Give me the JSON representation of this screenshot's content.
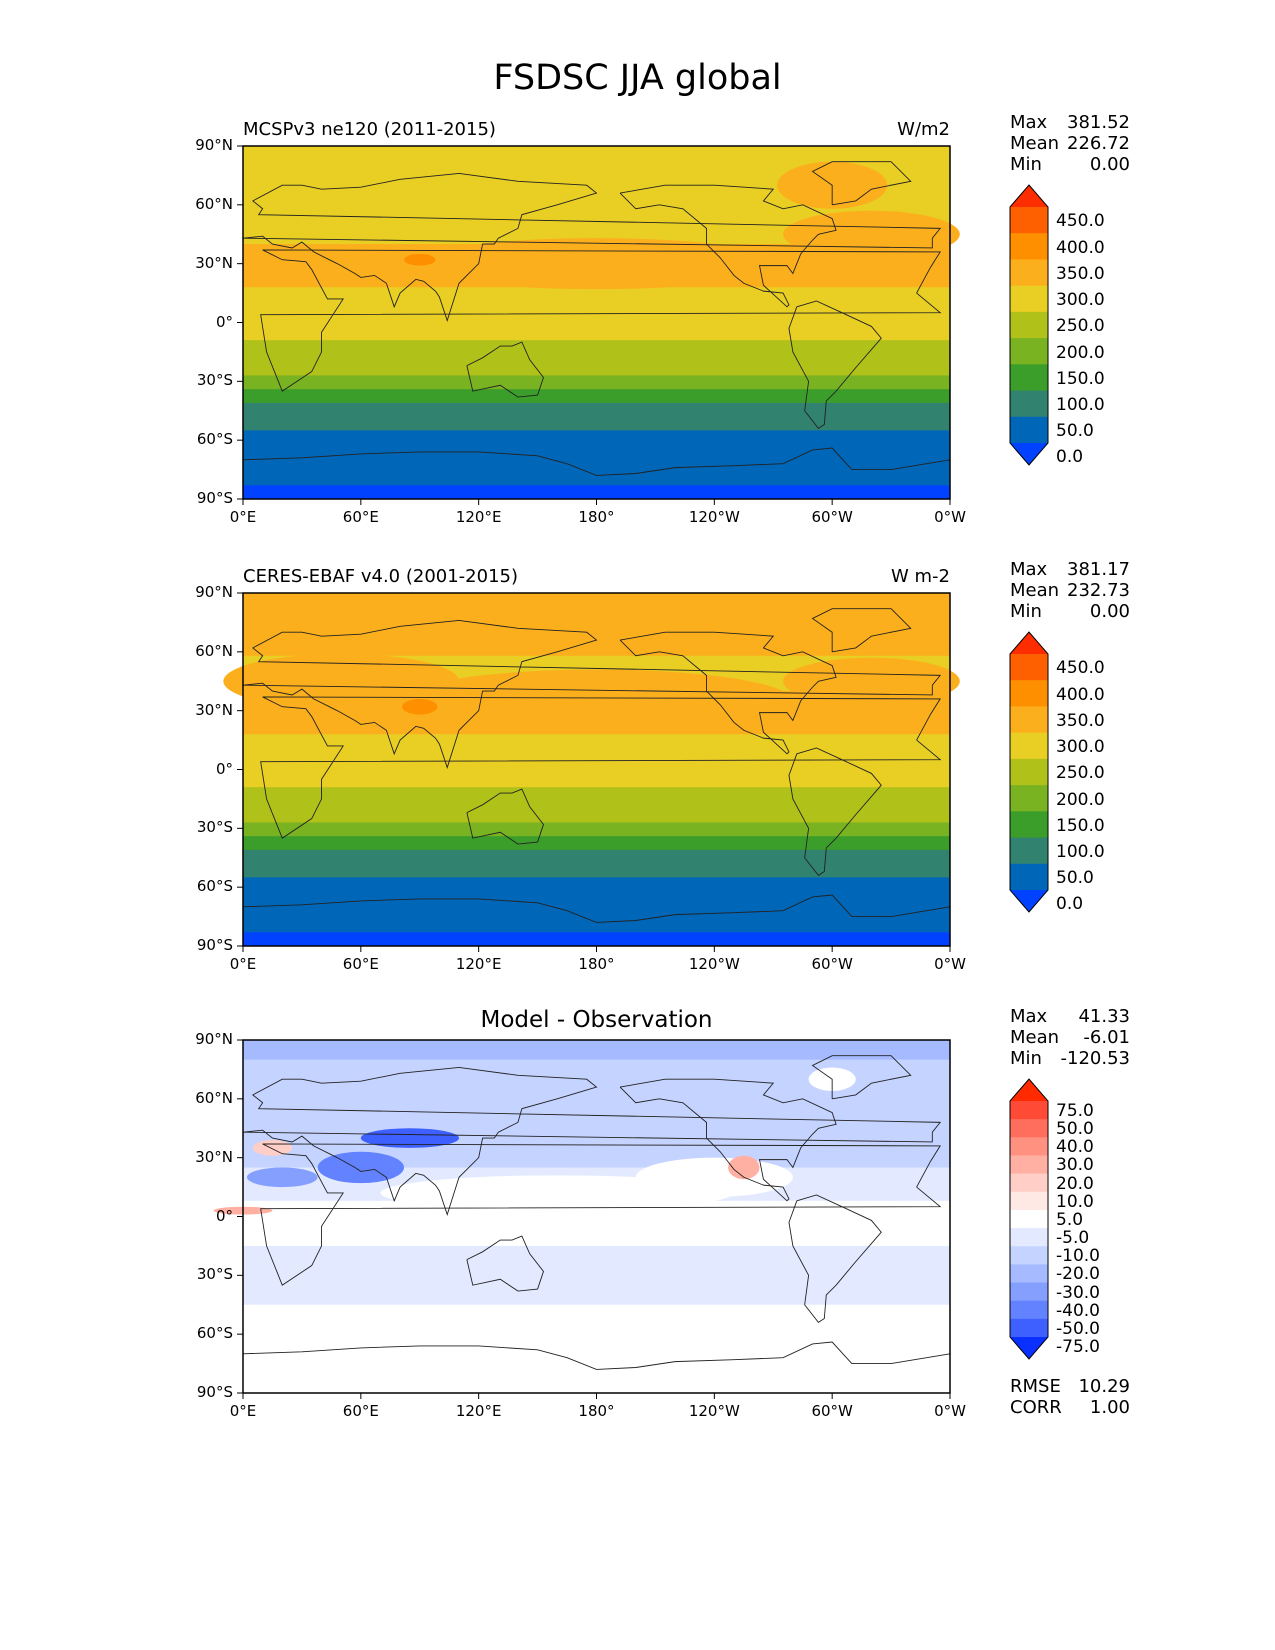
{
  "title": "FSDSC JJA global",
  "axes": {
    "lat_ticks": [
      "90°N",
      "60°N",
      "30°N",
      "0°",
      "30°S",
      "60°S",
      "90°S"
    ],
    "lon_ticks": [
      "0°E",
      "60°E",
      "120°E",
      "180°",
      "120°W",
      "60°W",
      "0°W"
    ]
  },
  "panels": [
    {
      "label": "MCSPv3 ne120 (2011-2015)",
      "units": "W/m2",
      "stats": [
        {
          "key": "Max",
          "value": "381.52"
        },
        {
          "key": "Mean",
          "value": "226.72"
        },
        {
          "key": "Min",
          "value": "0.00"
        }
      ],
      "colorbar": {
        "labels": [
          "450.0",
          "400.0",
          "350.0",
          "300.0",
          "250.0",
          "200.0",
          "150.0",
          "100.0",
          "50.0",
          "0.0"
        ],
        "colors": [
          "#fe2d00",
          "#fe6000",
          "#fe9000",
          "#fcaf1c",
          "#e9ce24",
          "#b0c21a",
          "#7ab322",
          "#3c9e2a",
          "#31826f",
          "#0066b8",
          "#0042ff"
        ]
      },
      "map_bands": [
        {
          "lat_from": 90,
          "lat_to": 58,
          "color": "#e9ce24"
        },
        {
          "lat_from": 58,
          "lat_to": 40,
          "color": "#e9ce24"
        },
        {
          "lat_from": 40,
          "lat_to": 18,
          "color": "#fcaf1c"
        },
        {
          "lat_from": 18,
          "lat_to": 3,
          "color": "#e9ce24"
        },
        {
          "lat_from": 3,
          "lat_to": -9,
          "color": "#e9ce24"
        },
        {
          "lat_from": -9,
          "lat_to": -27,
          "color": "#b0c21a"
        },
        {
          "lat_from": -27,
          "lat_to": -34,
          "color": "#7ab322"
        },
        {
          "lat_from": -34,
          "lat_to": -41,
          "color": "#3c9e2a"
        },
        {
          "lat_from": -41,
          "lat_to": -55,
          "color": "#31826f"
        },
        {
          "lat_from": -55,
          "lat_to": -83,
          "color": "#0066b8"
        },
        {
          "lat_from": -83,
          "lat_to": -90,
          "color": "#0042ff"
        }
      ],
      "patches": [
        {
          "lon": 180,
          "lat": 30,
          "rlon": 95,
          "rlat": 13,
          "color": "#fcaf1c"
        },
        {
          "lon": 320,
          "lat": 45,
          "rlon": 45,
          "rlat": 12,
          "color": "#fcaf1c"
        },
        {
          "lon": 300,
          "lat": 70,
          "rlon": 28,
          "rlat": 12,
          "color": "#fcaf1c"
        },
        {
          "lon": 20,
          "lat": 30,
          "rlon": 20,
          "rlat": 8,
          "color": "#fcaf1c"
        },
        {
          "lon": 90,
          "lat": 32,
          "rlon": 8,
          "rlat": 3,
          "color": "#fe9000"
        }
      ]
    },
    {
      "label": "CERES-EBAF v4.0 (2001-2015)",
      "units": "W m-2",
      "stats": [
        {
          "key": "Max",
          "value": "381.17"
        },
        {
          "key": "Mean",
          "value": "232.73"
        },
        {
          "key": "Min",
          "value": "0.00"
        }
      ],
      "colorbar": {
        "labels": [
          "450.0",
          "400.0",
          "350.0",
          "300.0",
          "250.0",
          "200.0",
          "150.0",
          "100.0",
          "50.0",
          "0.0"
        ],
        "colors": [
          "#fe2d00",
          "#fe6000",
          "#fe9000",
          "#fcaf1c",
          "#e9ce24",
          "#b0c21a",
          "#7ab322",
          "#3c9e2a",
          "#31826f",
          "#0066b8",
          "#0042ff"
        ]
      },
      "map_bands": [
        {
          "lat_from": 90,
          "lat_to": 58,
          "color": "#fcaf1c"
        },
        {
          "lat_from": 58,
          "lat_to": 40,
          "color": "#e9ce24"
        },
        {
          "lat_from": 40,
          "lat_to": 18,
          "color": "#fcaf1c"
        },
        {
          "lat_from": 18,
          "lat_to": 3,
          "color": "#e9ce24"
        },
        {
          "lat_from": 3,
          "lat_to": -9,
          "color": "#e9ce24"
        },
        {
          "lat_from": -9,
          "lat_to": -27,
          "color": "#b0c21a"
        },
        {
          "lat_from": -27,
          "lat_to": -34,
          "color": "#7ab322"
        },
        {
          "lat_from": -34,
          "lat_to": -41,
          "color": "#3c9e2a"
        },
        {
          "lat_from": -41,
          "lat_to": -55,
          "color": "#31826f"
        },
        {
          "lat_from": -55,
          "lat_to": -83,
          "color": "#0066b8"
        },
        {
          "lat_from": -83,
          "lat_to": -90,
          "color": "#0042ff"
        }
      ],
      "patches": [
        {
          "lon": 180,
          "lat": 35,
          "rlon": 100,
          "rlat": 16,
          "color": "#fcaf1c"
        },
        {
          "lon": 50,
          "lat": 45,
          "rlon": 60,
          "rlat": 14,
          "color": "#fcaf1c"
        },
        {
          "lon": 320,
          "lat": 45,
          "rlon": 45,
          "rlat": 12,
          "color": "#fcaf1c"
        },
        {
          "lon": 90,
          "lat": 32,
          "rlon": 9,
          "rlat": 4,
          "color": "#fe9000"
        }
      ]
    },
    {
      "center_title": "Model - Observation",
      "stats": [
        {
          "key": "Max",
          "value": "41.33"
        },
        {
          "key": "Mean",
          "value": "-6.01"
        },
        {
          "key": "Min",
          "value": "-120.53"
        }
      ],
      "colorbar": {
        "labels": [
          "75.0",
          "50.0",
          "40.0",
          "30.0",
          "20.0",
          "10.0",
          "5.0",
          "-5.0",
          "-10.0",
          "-20.0",
          "-30.0",
          "-40.0",
          "-50.0",
          "-75.0"
        ],
        "colors": [
          "#ff2a00",
          "#ff4a36",
          "#ff6e5c",
          "#ff9180",
          "#ffb0a3",
          "#ffcfc7",
          "#ffe9e5",
          "#ffffff",
          "#e3eaff",
          "#c4d3ff",
          "#a5baff",
          "#859fff",
          "#6382ff",
          "#3d60ff",
          "#0a30ff"
        ]
      },
      "map_bands": [
        {
          "lat_from": 90,
          "lat_to": 80,
          "color": "#a5baff"
        },
        {
          "lat_from": 80,
          "lat_to": 60,
          "color": "#c4d3ff"
        },
        {
          "lat_from": 60,
          "lat_to": 25,
          "color": "#c4d3ff"
        },
        {
          "lat_from": 25,
          "lat_to": 8,
          "color": "#e3eaff"
        },
        {
          "lat_from": 8,
          "lat_to": -15,
          "color": "#ffffff"
        },
        {
          "lat_from": -15,
          "lat_to": -45,
          "color": "#e3eaff"
        },
        {
          "lat_from": -45,
          "lat_to": -90,
          "color": "#ffffff"
        }
      ],
      "patches": [
        {
          "lon": 160,
          "lat": 12,
          "rlon": 90,
          "rlat": 9,
          "color": "#ffffff"
        },
        {
          "lon": 240,
          "lat": 20,
          "rlon": 40,
          "rlat": 10,
          "color": "#ffffff"
        },
        {
          "lon": 85,
          "lat": 40,
          "rlon": 25,
          "rlat": 5,
          "color": "#3d60ff"
        },
        {
          "lon": 60,
          "lat": 25,
          "rlon": 22,
          "rlat": 8,
          "color": "#6382ff"
        },
        {
          "lon": 20,
          "lat": 20,
          "rlon": 18,
          "rlat": 5,
          "color": "#859fff"
        },
        {
          "lon": 255,
          "lat": 25,
          "rlon": 8,
          "rlat": 6,
          "color": "#ffb0a3"
        },
        {
          "lon": 15,
          "lat": 35,
          "rlon": 10,
          "rlat": 4,
          "color": "#ffcfc7"
        },
        {
          "lon": 0,
          "lat": 3,
          "rlon": 15,
          "rlat": 2,
          "color": "#ffb0a3"
        },
        {
          "lon": 300,
          "lat": 70,
          "rlon": 12,
          "rlat": 6,
          "color": "#ffffff"
        },
        {
          "lon": 100,
          "lat": -30,
          "rlon": 35,
          "rlat": 10,
          "color": "#e3eaff"
        }
      ],
      "footer_stats": [
        {
          "key": "RMSE",
          "value": "10.29"
        },
        {
          "key": "CORR",
          "value": "1.00"
        }
      ]
    }
  ]
}
